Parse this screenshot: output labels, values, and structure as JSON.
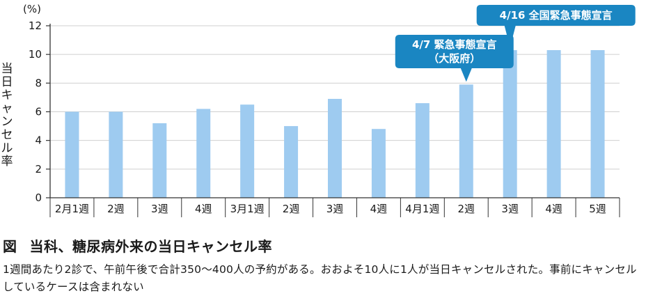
{
  "chart_data": {
    "type": "bar",
    "categories": [
      "2月1週",
      "2週",
      "3週",
      "4週",
      "3月1週",
      "2週",
      "3週",
      "4週",
      "4月1週",
      "2週",
      "3週",
      "4週",
      "5週"
    ],
    "values": [
      6.0,
      6.0,
      5.2,
      6.2,
      6.5,
      5.0,
      6.9,
      4.8,
      6.6,
      7.9,
      10.3,
      10.3,
      10.3
    ],
    "ylabel": "当日キャンセル率",
    "yunit": "(%)",
    "ylim": [
      0,
      12
    ],
    "yticks": [
      0,
      2,
      4,
      6,
      8,
      10,
      12
    ],
    "grid": true,
    "bar_color": "#9ecbf0",
    "annotations": [
      {
        "lines": [
          "4/7 緊急事態宣言",
          "（大阪府）"
        ],
        "category_index": 9
      },
      {
        "lines": [
          "4/16 全国緊急事態宣言"
        ],
        "category_index": 10
      }
    ],
    "annotation_color": "#1a86c2"
  },
  "caption": {
    "figure_label": "図",
    "title": "当科、糖尿病外来の当日キャンセル率",
    "body": "1週間あたり2診で、午前午後で合計350〜400人の予約がある。おおよそ10人に1人が当日キャンセルされた。事前にキャンセルしているケースは含まれない"
  }
}
